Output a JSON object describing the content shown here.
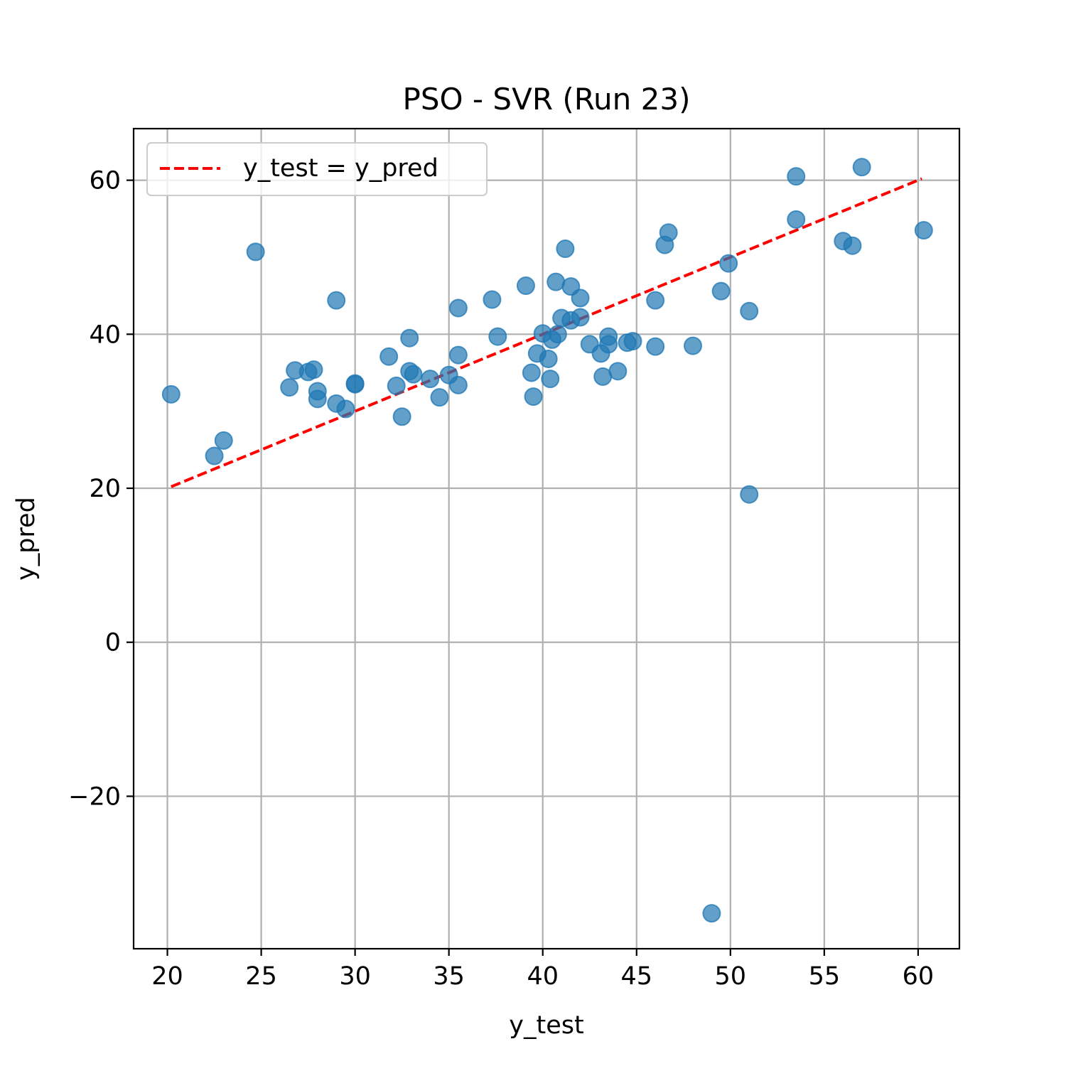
{
  "chart_data": {
    "type": "scatter",
    "title": "PSO - SVR (Run 23)",
    "xlabel": "y_test",
    "ylabel": "y_pred",
    "xlim": [
      18.2,
      62.2
    ],
    "ylim": [
      -39.8,
      66.7
    ],
    "x_ticks": [
      20,
      25,
      30,
      35,
      40,
      45,
      50,
      55,
      60
    ],
    "x_tick_labels": [
      "20",
      "25",
      "30",
      "35",
      "40",
      "45",
      "50",
      "55",
      "60"
    ],
    "y_ticks": [
      -20,
      0,
      20,
      40,
      60
    ],
    "y_tick_labels": [
      "−20",
      "0",
      "20",
      "40",
      "60"
    ],
    "grid": true,
    "legend": {
      "placement": "top-left",
      "entries": [
        "y_test = y_pred"
      ]
    },
    "colors": {
      "points": "#1f77b4",
      "line": "#ff0000",
      "grid": "#b0b0b0"
    },
    "reference_line": {
      "name": "y_test = y_pred",
      "x": [
        20.2,
        60.2
      ],
      "y": [
        20.2,
        60.2
      ],
      "style": "dashed"
    },
    "series": [
      {
        "points": [
          [
            20.2,
            32.2
          ],
          [
            22.5,
            24.2
          ],
          [
            23.0,
            26.2
          ],
          [
            24.7,
            50.7
          ],
          [
            26.5,
            33.1
          ],
          [
            26.8,
            35.3
          ],
          [
            27.5,
            35.1
          ],
          [
            27.8,
            35.4
          ],
          [
            28.0,
            32.6
          ],
          [
            28.0,
            31.6
          ],
          [
            29.0,
            44.4
          ],
          [
            29.0,
            31.0
          ],
          [
            29.5,
            30.3
          ],
          [
            30.0,
            33.5
          ],
          [
            30.0,
            33.6
          ],
          [
            31.8,
            37.1
          ],
          [
            32.2,
            33.3
          ],
          [
            32.5,
            29.3
          ],
          [
            32.9,
            39.5
          ],
          [
            32.9,
            35.2
          ],
          [
            33.1,
            34.8
          ],
          [
            34.0,
            34.2
          ],
          [
            34.5,
            31.8
          ],
          [
            35.0,
            34.7
          ],
          [
            35.5,
            43.4
          ],
          [
            35.5,
            37.3
          ],
          [
            35.5,
            33.4
          ],
          [
            37.3,
            44.5
          ],
          [
            37.6,
            39.7
          ],
          [
            39.1,
            46.3
          ],
          [
            39.4,
            35.0
          ],
          [
            39.5,
            31.9
          ],
          [
            39.7,
            37.5
          ],
          [
            40.0,
            40.1
          ],
          [
            40.3,
            36.8
          ],
          [
            40.4,
            34.2
          ],
          [
            40.5,
            39.3
          ],
          [
            40.7,
            46.8
          ],
          [
            40.8,
            40.0
          ],
          [
            41.0,
            42.1
          ],
          [
            41.2,
            51.1
          ],
          [
            41.5,
            46.2
          ],
          [
            41.5,
            41.8
          ],
          [
            42.0,
            44.7
          ],
          [
            42.0,
            42.2
          ],
          [
            42.5,
            38.7
          ],
          [
            43.1,
            37.5
          ],
          [
            43.2,
            34.5
          ],
          [
            43.5,
            39.7
          ],
          [
            43.5,
            38.7
          ],
          [
            44.0,
            35.2
          ],
          [
            44.5,
            38.9
          ],
          [
            44.8,
            39.1
          ],
          [
            46.0,
            44.4
          ],
          [
            46.0,
            38.4
          ],
          [
            46.5,
            51.6
          ],
          [
            46.7,
            53.2
          ],
          [
            48.0,
            38.5
          ],
          [
            49.0,
            -35.2
          ],
          [
            49.5,
            45.6
          ],
          [
            49.9,
            49.2
          ],
          [
            51.0,
            43.0
          ],
          [
            51.0,
            19.2
          ],
          [
            53.5,
            60.5
          ],
          [
            53.5,
            54.9
          ],
          [
            56.0,
            52.1
          ],
          [
            56.5,
            51.5
          ],
          [
            57.0,
            61.7
          ],
          [
            60.3,
            53.5
          ]
        ]
      }
    ]
  }
}
